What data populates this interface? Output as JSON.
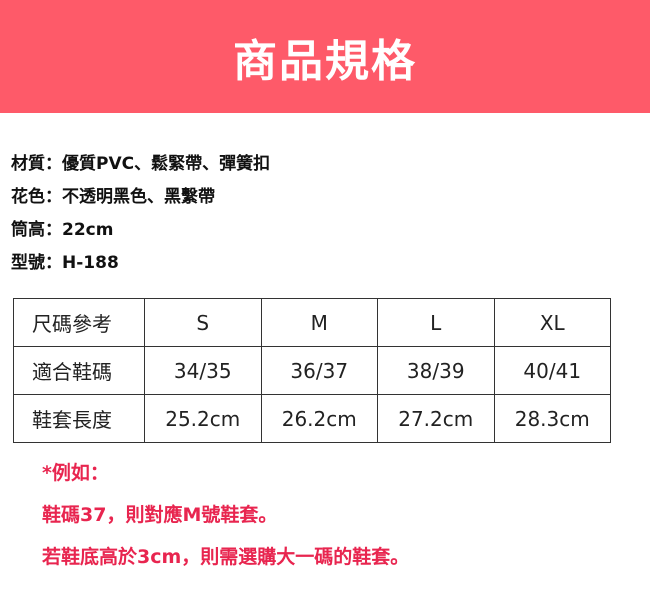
{
  "header": {
    "title": "商品規格"
  },
  "specs": [
    {
      "label": "材質",
      "value": "優質PVC、鬆緊帶、彈簧扣"
    },
    {
      "label": "花色",
      "value": "不透明黑色、黑繫帶"
    },
    {
      "label": "筒高",
      "value": "22cm"
    },
    {
      "label": "型號",
      "value": "H-188"
    }
  ],
  "separator": "：",
  "table": {
    "rows": [
      [
        "尺碼參考",
        "S",
        "M",
        "L",
        "XL"
      ],
      [
        "適合鞋碼",
        "34/35",
        "36/37",
        "38/39",
        "40/41"
      ],
      [
        "鞋套長度",
        "25.2cm",
        "26.2cm",
        "27.2cm",
        "28.3cm"
      ]
    ]
  },
  "notes": [
    "*例如：",
    "鞋碼37，則對應M號鞋套。",
    "若鞋底高於3cm，則需選購大一碼的鞋套。"
  ],
  "colors": {
    "header_bg": "#fe5a69",
    "note_text": "#e8254f"
  }
}
